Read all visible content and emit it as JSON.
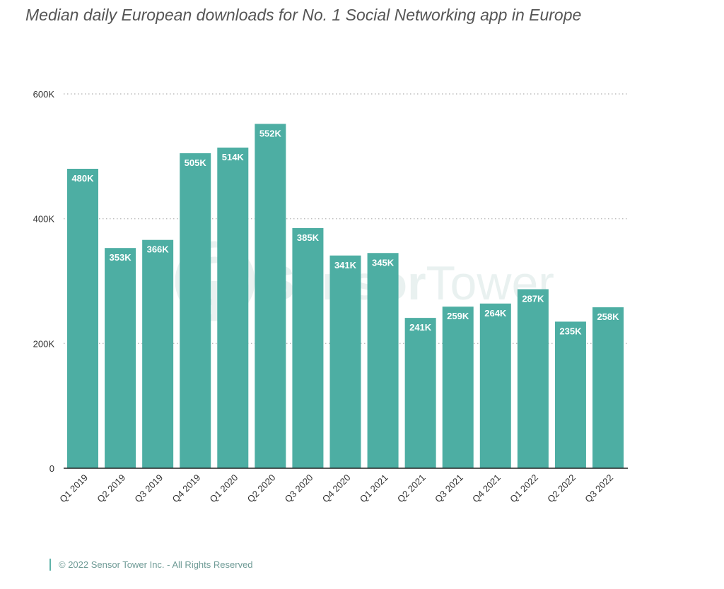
{
  "page_title": "Median daily European downloads for No. 1 Social Networking app in Europe",
  "watermark": {
    "text_bold": "Sensor",
    "text_light": "Tower"
  },
  "footer": {
    "copyright": "© 2022 Sensor Tower Inc. - All Rights Reserved"
  },
  "colors": {
    "bar": "#4daea3",
    "bar_label": "#ffffff",
    "grid": "#bdbdbd",
    "axis": "#222222",
    "tick_text": "#333333",
    "footer_accent": "#5fb3a9"
  },
  "chart_data": {
    "type": "bar",
    "title": "Median daily European downloads for No. 1 Social Networking app in Europe",
    "xlabel": "",
    "ylabel": "",
    "categories": [
      "Q1 2019",
      "Q2 2019",
      "Q3 2019",
      "Q4 2019",
      "Q1 2020",
      "Q2 2020",
      "Q3 2020",
      "Q4 2020",
      "Q1 2021",
      "Q2 2021",
      "Q3 2021",
      "Q4 2021",
      "Q1 2022",
      "Q2 2022",
      "Q3 2022"
    ],
    "values": [
      480000,
      353000,
      366000,
      505000,
      514000,
      552000,
      385000,
      341000,
      345000,
      241000,
      259000,
      264000,
      287000,
      235000,
      258000
    ],
    "data_labels": [
      "480K",
      "353K",
      "366K",
      "505K",
      "514K",
      "552K",
      "385K",
      "341K",
      "345K",
      "241K",
      "259K",
      "264K",
      "287K",
      "235K",
      "258K"
    ],
    "ylim": [
      0,
      600000
    ],
    "yticks": [
      0,
      200000,
      400000,
      600000
    ],
    "ytick_labels": [
      "0",
      "200K",
      "400K",
      "600K"
    ],
    "grid": true,
    "legend": "none"
  }
}
